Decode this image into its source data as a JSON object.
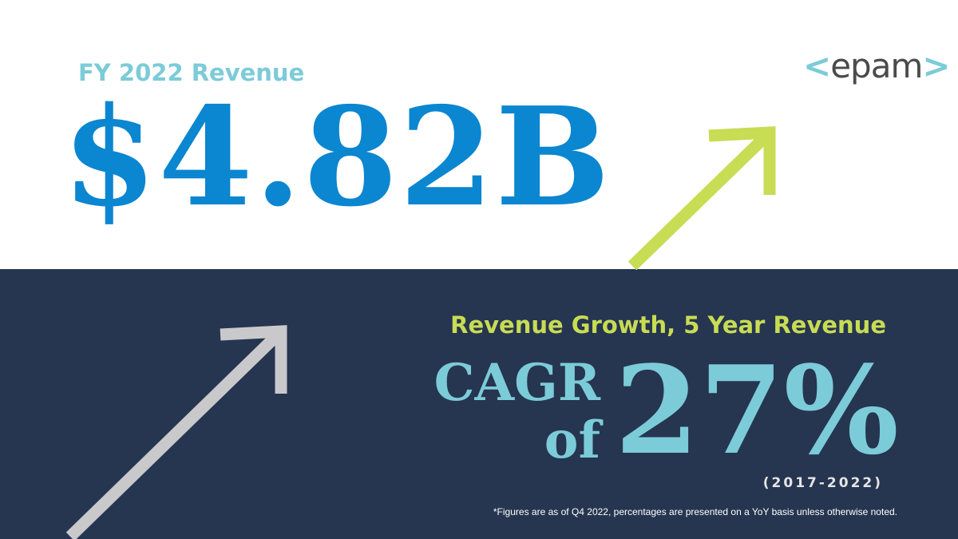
{
  "headline": {
    "fy_label": "FY 2022 Revenue",
    "value": "$4.82B"
  },
  "logo": {
    "left_bracket": "<",
    "text": "epam",
    "right_bracket": ">"
  },
  "growth": {
    "label": "Revenue Growth, 5 Year Revenue",
    "cagr": "CAGR",
    "of": "of",
    "percent": "27%",
    "years": "(2017-2022)"
  },
  "footnote": "*Figures are as of Q4 2022, percentages are presented on a YoY basis unless otherwise noted.",
  "colors": {
    "navy": "#263550",
    "blue": "#0b86d0",
    "teal": "#7ccbd8",
    "lime": "#c8dc54",
    "grey_arrow": "#c9c9cc"
  }
}
